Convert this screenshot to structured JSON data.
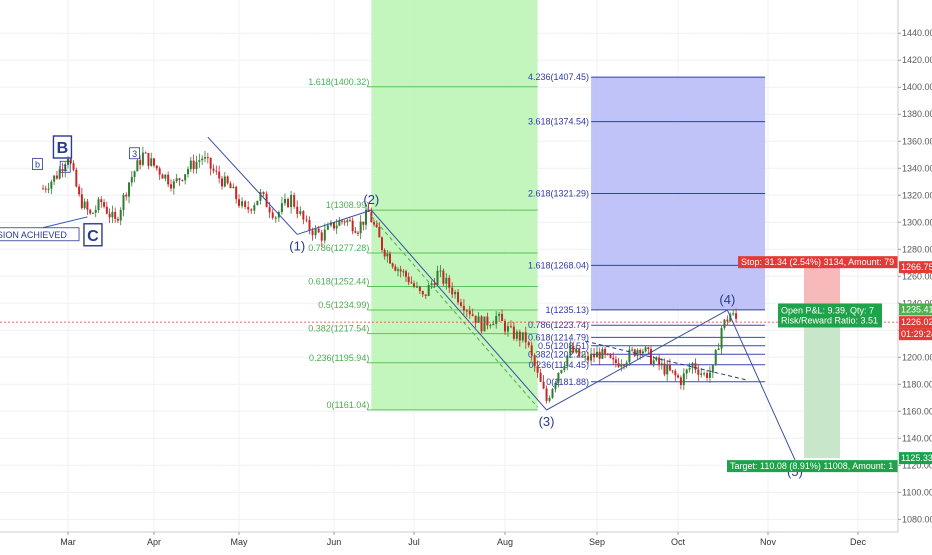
{
  "chart_data": {
    "type": "line",
    "symbol_context": "candlestick price chart with Elliott wave and Fibonacci annotations",
    "x_axis": {
      "ticks": [
        "Mar",
        "Apr",
        "May",
        "Jun",
        "Jul",
        "Aug",
        "Sep",
        "Oct",
        "Nov",
        "Dec"
      ]
    },
    "y_axis": {
      "range": [
        1070,
        1450
      ],
      "ticks": [
        1080,
        1100,
        1120,
        1140,
        1160,
        1180,
        1200,
        1220,
        1240,
        1260,
        1280,
        1300,
        1320,
        1340,
        1360,
        1380,
        1400,
        1420,
        1440
      ],
      "tick_labels": [
        "1080.00",
        "1100.00",
        "1120.00",
        "1140.00",
        "1160.00",
        "1180.00",
        "1200.00",
        "1220.00",
        "1240.00",
        "1260.00",
        "1280.00",
        "1300.00",
        "1320.00",
        "1340.00",
        "1360.00",
        "1380.00",
        "1400.00",
        "1420.00",
        "1440.00"
      ],
      "position": "right"
    },
    "grid": true,
    "price_series": [
      {
        "x": "Feb 20",
        "y": 1325
      },
      {
        "x": "Feb 25",
        "y": 1335
      },
      {
        "x": "Mar 1",
        "y": 1350
      },
      {
        "x": "Mar 5",
        "y": 1318
      },
      {
        "x": "Mar 9",
        "y": 1305
      },
      {
        "x": "Mar 13",
        "y": 1315
      },
      {
        "x": "Mar 18",
        "y": 1300
      },
      {
        "x": "Mar 23",
        "y": 1330
      },
      {
        "x": "Mar 28",
        "y": 1350
      },
      {
        "x": "Apr 3",
        "y": 1338
      },
      {
        "x": "Apr 8",
        "y": 1328
      },
      {
        "x": "Apr 13",
        "y": 1340
      },
      {
        "x": "Apr 18",
        "y": 1348
      },
      {
        "x": "Apr 23",
        "y": 1335
      },
      {
        "x": "Apr 28",
        "y": 1325
      },
      {
        "x": "May 3",
        "y": 1308
      },
      {
        "x": "May 8",
        "y": 1320
      },
      {
        "x": "May 13",
        "y": 1305
      },
      {
        "x": "May 18",
        "y": 1318
      },
      {
        "x": "May 23",
        "y": 1297
      },
      {
        "x": "May 28",
        "y": 1290
      },
      {
        "x": "Jun 1",
        "y": 1298
      },
      {
        "x": "Jun 5",
        "y": 1302
      },
      {
        "x": "Jun 10",
        "y": 1296
      },
      {
        "x": "Jun 14",
        "y": 1307
      },
      {
        "x": "Jun 19",
        "y": 1282
      },
      {
        "x": "Jun 24",
        "y": 1268
      },
      {
        "x": "Jun 29",
        "y": 1258
      },
      {
        "x": "Jul 4",
        "y": 1244
      },
      {
        "x": "Jul 9",
        "y": 1262
      },
      {
        "x": "Jul 14",
        "y": 1250
      },
      {
        "x": "Jul 19",
        "y": 1237
      },
      {
        "x": "Jul 24",
        "y": 1224
      },
      {
        "x": "Jul 29",
        "y": 1230
      },
      {
        "x": "Aug 3",
        "y": 1218
      },
      {
        "x": "Aug 8",
        "y": 1213
      },
      {
        "x": "Aug 12",
        "y": 1186
      },
      {
        "x": "Aug 15",
        "y": 1168
      },
      {
        "x": "Aug 19",
        "y": 1190
      },
      {
        "x": "Aug 23",
        "y": 1205
      },
      {
        "x": "Aug 28",
        "y": 1198
      },
      {
        "x": "Sep 2",
        "y": 1203
      },
      {
        "x": "Sep 7",
        "y": 1195
      },
      {
        "x": "Sep 12",
        "y": 1200
      },
      {
        "x": "Sep 17",
        "y": 1208
      },
      {
        "x": "Sep 22",
        "y": 1197
      },
      {
        "x": "Sep 27",
        "y": 1190
      },
      {
        "x": "Oct 2",
        "y": 1183
      },
      {
        "x": "Oct 6",
        "y": 1195
      },
      {
        "x": "Oct 10",
        "y": 1187
      },
      {
        "x": "Oct 13",
        "y": 1190
      },
      {
        "x": "Oct 16",
        "y": 1222
      },
      {
        "x": "Oct 19",
        "y": 1232
      },
      {
        "x": "Oct 22",
        "y": 1226
      }
    ],
    "fib_retracement_green": [
      {
        "level": "1.618",
        "price": "1400.32",
        "label": "1.618(1400.32)"
      },
      {
        "level": "1",
        "price": "1308.99",
        "label": "1(1308.99)"
      },
      {
        "level": "0.786",
        "price": "1277.28",
        "label": "0.786(1277.28)"
      },
      {
        "level": "0.618",
        "price": "1252.44",
        "label": "0.618(1252.44)"
      },
      {
        "level": "0.5",
        "price": "1234.99",
        "label": "0.5(1234.99)"
      },
      {
        "level": "0.382",
        "price": "1217.54",
        "label": "0.382(1217.54)"
      },
      {
        "level": "0.236",
        "price": "1195.94",
        "label": "0.236(1195.94)"
      },
      {
        "level": "0",
        "price": "1161.04",
        "label": "0(1161.04)"
      }
    ],
    "fib_extension_blue": [
      {
        "level": "4.236",
        "price": "1407.45",
        "label": "4.236(1407.45)"
      },
      {
        "level": "3.618",
        "price": "1374.54",
        "label": "3.618(1374.54)"
      },
      {
        "level": "2.618",
        "price": "1321.29",
        "label": "2.618(1321.29)"
      },
      {
        "level": "1.618",
        "price": "1268.04",
        "label": "1.618(1268.04)"
      },
      {
        "level": "1",
        "price": "1235.13",
        "label": "1(1235.13)"
      }
    ],
    "fib_retracement_small": [
      {
        "level": "0.786",
        "price": "1223.74",
        "label": "0.786(1223.74)"
      },
      {
        "level": "0.618",
        "price": "1214.79",
        "label": "0.618(1214.79)"
      },
      {
        "level": "0.5",
        "price": "1208.51",
        "label": "0.5(1208.51)"
      },
      {
        "level": "0.382",
        "price": "1202.22",
        "label": "0.382(1202.22)"
      },
      {
        "level": "0.236",
        "price": "1194.45",
        "label": "0.236(1194.45)"
      },
      {
        "level": "0",
        "price": "1181.88",
        "label": "0(1181.88)"
      }
    ],
    "elliott_waves": [
      {
        "label": "(1)",
        "x": "May 20",
        "y": 1291
      },
      {
        "label": "(2)",
        "x": "Jun 15",
        "y": 1309
      },
      {
        "label": "(3)",
        "x": "Aug 15",
        "y": 1161
      },
      {
        "label": "(4)",
        "x": "Oct 18",
        "y": 1235
      },
      {
        "label": "(5)",
        "x": "Nov 10",
        "y": 1124
      }
    ],
    "early_annotations": [
      {
        "label": "b",
        "x": "Feb 18",
        "y": 1342
      },
      {
        "label": "B",
        "x": "Feb 27",
        "y": 1355
      },
      {
        "label": "1",
        "x": "Feb 28",
        "y": 1340
      },
      {
        "label": "3",
        "x": "Mar 25",
        "y": 1350
      },
      {
        "label": "C",
        "x": "Mar 10",
        "y": 1290
      },
      {
        "label": "XPANSION ACHIEVED",
        "x": "Feb 20",
        "y": 1290
      }
    ],
    "price_tags": [
      {
        "name": "stop",
        "price": "1266.75",
        "color": "#e53935"
      },
      {
        "name": "entry",
        "price": "1235.41",
        "color": "#4caf50"
      },
      {
        "name": "current",
        "price": "1226.02",
        "color": "#e53935"
      },
      {
        "name": "timer",
        "text": "01:29:24",
        "color": "#e53935"
      },
      {
        "name": "target",
        "price": "1125.33",
        "color": "#16a34a"
      }
    ],
    "trade_info": {
      "stop_label": "Stop: 31.34 (2.54%) 3134, Amount: 79",
      "pnl_label": "Open P&L: 9.39, Qty: 7",
      "rr_label": "Risk/Reward Ratio: 3.51",
      "target_label": "Target: 110.08 (8.91%) 11008, Amount: 1"
    },
    "colors": {
      "green_zone": "#b9f5b0",
      "blue_zone": "#b8bcf7",
      "stop_zone": "#f7b9b9",
      "target_zone": "#c8e6c9",
      "candle_up": "#2e7d32",
      "candle_down": "#c62828",
      "wave_line": "#3a4fa0",
      "current_price_line": "#e53935"
    }
  }
}
